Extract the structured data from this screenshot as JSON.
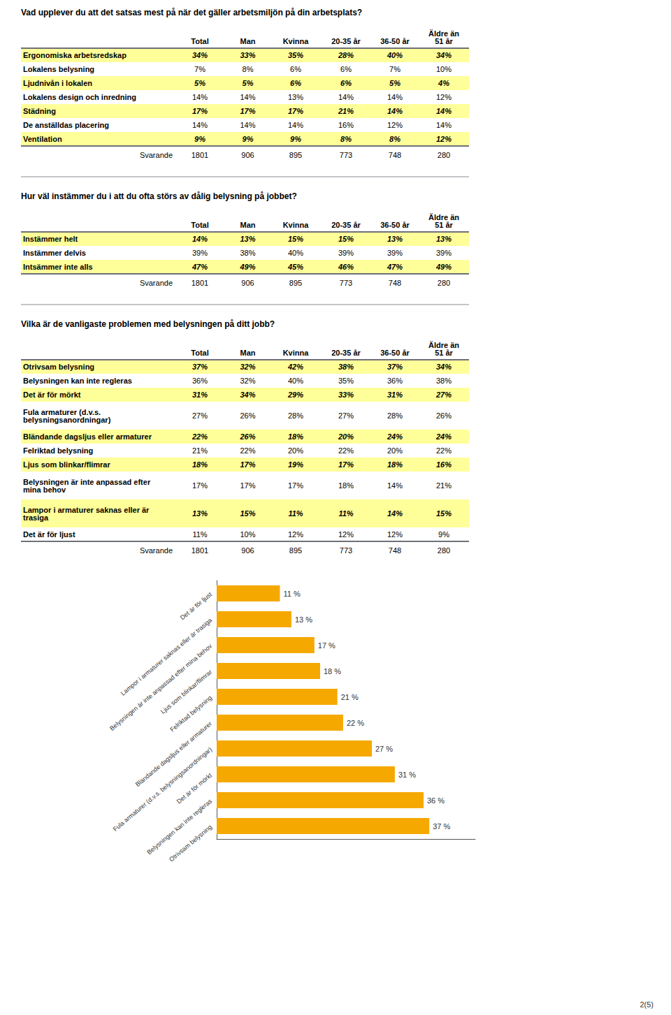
{
  "chart_data": [
    {
      "type": "table",
      "title": "Vad upplever du att det satsas mest på när det gäller arbetsmiljön på din arbetsplats?",
      "columns": [
        "Total",
        "Man",
        "Kvinna",
        "20-35 år",
        "36-50 år",
        "Äldre än\n51 år"
      ],
      "series": [
        {
          "name": "Ergonomiska arbetsredskap",
          "values": [
            34,
            33,
            35,
            28,
            40,
            34
          ],
          "value_labels": [
            "34%",
            "33%",
            "35%",
            "28%",
            "40%",
            "34%"
          ],
          "color": "#ffff99"
        },
        {
          "name": "Lokalens belysning",
          "values": [
            7,
            8,
            6,
            6,
            7,
            10
          ],
          "value_labels": [
            "7%",
            "8%",
            "6%",
            "6%",
            "7%",
            "10%"
          ]
        },
        {
          "name": "Ljudnivån i lokalen",
          "values": [
            5,
            5,
            6,
            6,
            5,
            4
          ],
          "value_labels": [
            "5%",
            "5%",
            "6%",
            "6%",
            "5%",
            "4%"
          ],
          "color": "#ffff99"
        },
        {
          "name": "Lokalens design och inredning",
          "values": [
            14,
            14,
            13,
            14,
            14,
            12
          ],
          "value_labels": [
            "14%",
            "14%",
            "13%",
            "14%",
            "14%",
            "12%"
          ]
        },
        {
          "name": "Städning",
          "values": [
            17,
            17,
            17,
            21,
            14,
            14
          ],
          "value_labels": [
            "17%",
            "17%",
            "17%",
            "21%",
            "14%",
            "14%"
          ],
          "color": "#ffff99"
        },
        {
          "name": "De anställdas placering",
          "values": [
            14,
            14,
            14,
            16,
            12,
            14
          ],
          "value_labels": [
            "14%",
            "14%",
            "14%",
            "16%",
            "12%",
            "14%"
          ]
        },
        {
          "name": "Ventilation",
          "values": [
            9,
            9,
            9,
            8,
            8,
            12
          ],
          "value_labels": [
            "9%",
            "9%",
            "9%",
            "8%",
            "8%",
            "12%"
          ],
          "color": "#ffff99"
        }
      ],
      "respondents": {
        "name": "Svarande",
        "values": [
          1801,
          906,
          895,
          773,
          748,
          280
        ]
      }
    },
    {
      "type": "table",
      "title": "Hur väl instämmer du i att du ofta störs av dålig belysning på jobbet?",
      "columns": [
        "Total",
        "Man",
        "Kvinna",
        "20-35 år",
        "36-50 år",
        "Äldre än\n51 år"
      ],
      "series": [
        {
          "name": "Instämmer helt",
          "values": [
            14,
            13,
            15,
            15,
            13,
            13
          ],
          "value_labels": [
            "14%",
            "13%",
            "15%",
            "15%",
            "13%",
            "13%"
          ],
          "color": "#ffff99"
        },
        {
          "name": "Instämmer delvis",
          "values": [
            39,
            38,
            40,
            39,
            39,
            39
          ],
          "value_labels": [
            "39%",
            "38%",
            "40%",
            "39%",
            "39%",
            "39%"
          ]
        },
        {
          "name": "Intsämmer inte alls",
          "values": [
            47,
            49,
            45,
            46,
            47,
            49
          ],
          "value_labels": [
            "47%",
            "49%",
            "45%",
            "46%",
            "47%",
            "49%"
          ],
          "color": "#ffff99"
        }
      ],
      "respondents": {
        "name": "Svarande",
        "values": [
          1801,
          906,
          895,
          773,
          748,
          280
        ]
      }
    },
    {
      "type": "table",
      "title": "Vilka är de vanligaste problemen med belysningen på ditt jobb?",
      "columns": [
        "Total",
        "Man",
        "Kvinna",
        "20-35 år",
        "36-50 år",
        "Äldre än\n51 år"
      ],
      "series": [
        {
          "name": "Otrivsam belysning",
          "values": [
            37,
            32,
            42,
            38,
            37,
            34
          ],
          "value_labels": [
            "37%",
            "32%",
            "42%",
            "38%",
            "37%",
            "34%"
          ],
          "color": "#ffff99"
        },
        {
          "name": "Belysningen kan inte regleras",
          "values": [
            36,
            32,
            40,
            35,
            36,
            38
          ],
          "value_labels": [
            "36%",
            "32%",
            "40%",
            "35%",
            "36%",
            "38%"
          ]
        },
        {
          "name": "Det är för mörkt",
          "values": [
            31,
            34,
            29,
            33,
            31,
            27
          ],
          "value_labels": [
            "31%",
            "34%",
            "29%",
            "33%",
            "31%",
            "27%"
          ],
          "color": "#ffff99"
        },
        {
          "name": "Fula armaturer (d.v.s.\nbelysningsanordningar)",
          "values": [
            27,
            26,
            28,
            27,
            28,
            26
          ],
          "value_labels": [
            "27%",
            "26%",
            "28%",
            "27%",
            "28%",
            "26%"
          ]
        },
        {
          "name": "Bländande dagsljus eller armaturer",
          "values": [
            22,
            26,
            18,
            20,
            24,
            24
          ],
          "value_labels": [
            "22%",
            "26%",
            "18%",
            "20%",
            "24%",
            "24%"
          ],
          "color": "#ffff99"
        },
        {
          "name": "Felriktad belysning",
          "values": [
            21,
            22,
            20,
            22,
            20,
            22
          ],
          "value_labels": [
            "21%",
            "22%",
            "20%",
            "22%",
            "20%",
            "22%"
          ]
        },
        {
          "name": "Ljus som blinkar/flimrar",
          "values": [
            18,
            17,
            19,
            17,
            18,
            16
          ],
          "value_labels": [
            "18%",
            "17%",
            "19%",
            "17%",
            "18%",
            "16%"
          ],
          "color": "#ffff99"
        },
        {
          "name": "Belysningen är inte anpassad efter\nmina behov",
          "values": [
            17,
            17,
            17,
            18,
            14,
            21
          ],
          "value_labels": [
            "17%",
            "17%",
            "17%",
            "18%",
            "14%",
            "21%"
          ]
        },
        {
          "name": "Lampor i armaturer saknas eller är\ntrasiga",
          "values": [
            13,
            15,
            11,
            11,
            14,
            15
          ],
          "value_labels": [
            "13%",
            "15%",
            "11%",
            "11%",
            "14%",
            "15%"
          ],
          "color": "#ffff99"
        },
        {
          "name": "Det är för ljust",
          "values": [
            11,
            10,
            12,
            12,
            12,
            9
          ],
          "value_labels": [
            "11%",
            "10%",
            "12%",
            "12%",
            "12%",
            "9%"
          ]
        }
      ],
      "respondents": {
        "name": "Svarande",
        "values": [
          1801,
          906,
          895,
          773,
          748,
          280
        ]
      }
    },
    {
      "type": "bar",
      "orientation": "horizontal",
      "categories": [
        "Det är för ljust",
        "Lampor i armaturer saknas eller är trasiga",
        "Belysningen är inte anpassad efter mina behov",
        "Ljus som blinkar/flimrar",
        "Felriktad belysning",
        "Bländande dagsljus eller armaturer",
        "Fula armaturer (d.v.s. belysningsanordningar)",
        "Det är för mörkt",
        "Belysningen kan inte regleras",
        "Otrivsam belysning"
      ],
      "values": [
        11,
        13,
        17,
        18,
        21,
        22,
        27,
        31,
        36,
        37
      ],
      "value_labels": [
        "11 %",
        "13 %",
        "17 %",
        "18 %",
        "21 %",
        "22 %",
        "27 %",
        "31 %",
        "36 %",
        "37 %"
      ],
      "data_labels": true,
      "color": "#f5a800",
      "xlim": [
        0,
        45
      ],
      "tick_labels": "y",
      "grid": false
    }
  ],
  "footer": "2(5)"
}
